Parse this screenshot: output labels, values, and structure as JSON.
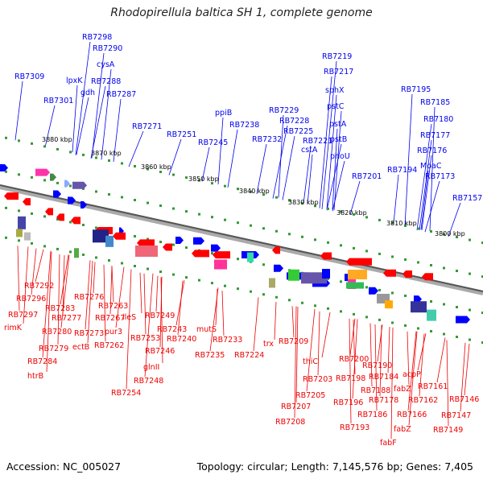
{
  "title": "Rhodopirellula baltica SH 1, complete genome",
  "footer": {
    "accession": "Accession: NC_005027",
    "topology": "Topology: circular; Length: 7,145,576 bp; Genes: 7,405"
  },
  "kbp_ticks": [
    "3880 kbp",
    "3870 kbp",
    "3860 kbp",
    "3850 kbp",
    "3840 kbp",
    "3830 kbp",
    "3820 kbp",
    "3810 kbp",
    "3800 kbp"
  ],
  "colors": {
    "top_labels": "#0000ee",
    "bottom_labels": "#ee0000",
    "backbone": "#888888",
    "forward_gene": "#0000ff",
    "reverse_gene": "#ff0000",
    "tick": "#339933"
  },
  "top_labels": [
    "RB7298",
    "RB7290",
    "cysA",
    "RB7309",
    "lpxK",
    "RB7288",
    "gdh",
    "RB7301",
    "RB7287",
    "ppiB",
    "RB7271",
    "RB7251",
    "RB7238",
    "RB7245",
    "RB7229",
    "RB7228",
    "RB7225",
    "RB7232",
    "RB7221",
    "cstA",
    "RB7219",
    "RB7217",
    "sphX",
    "pstC",
    "pstA",
    "pstB",
    "phoU",
    "RB7201",
    "RB7195",
    "RB7185",
    "RB7180",
    "RB7177",
    "RB7176",
    "MoaC",
    "RB7194",
    "RB7173",
    "RB7157"
  ],
  "bottom_labels": [
    "RB7292",
    "RB7296",
    "RB7276",
    "RB7297",
    "RB7283",
    "rimK",
    "RB7277",
    "RB7263",
    "RB7280",
    "RB7273",
    "RB7267",
    "ileS",
    "pur3",
    "ectB",
    "RB7279",
    "RB7262",
    "RB7284",
    "htrB",
    "RB7249",
    "RB7253",
    "RB7243",
    "RB7240",
    "RB7246",
    "glnII",
    "RB7248",
    "RB7254",
    "mutS",
    "RB7233",
    "RB7235",
    "RB7224",
    "trx",
    "RB7209",
    "thiC",
    "RB7200",
    "RB7203",
    "RB7198",
    "RB7205",
    "RB7190",
    "RB7184",
    "RB7188",
    "acpP",
    "RB7196",
    "RB7178",
    "fabZ",
    "RB7161",
    "RB7162",
    "RB7207",
    "RB7186",
    "RB7166",
    "RB7146",
    "RB7208",
    "RB7193",
    "fabZ",
    "RB7147",
    "fabF",
    "RB7149"
  ]
}
